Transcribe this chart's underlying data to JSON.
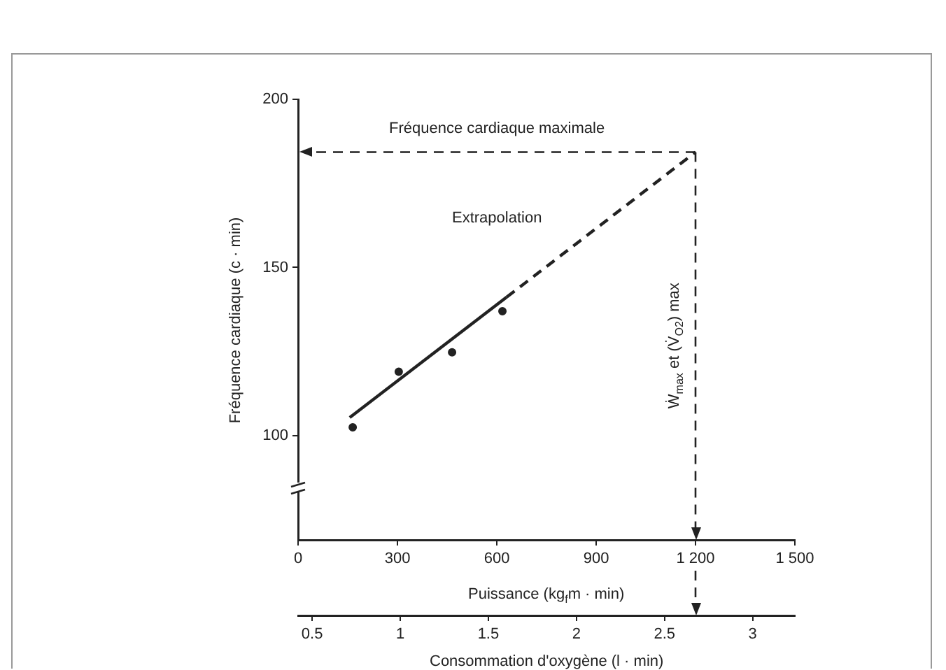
{
  "chart_data": {
    "type": "scatter",
    "xlabel": "Puissance (kg$_{f}$m · min)",
    "ylabel": "Fréquence cardiaque (c · min)",
    "x2label": "Consommation d'oxygène (l · min)",
    "xlim": [
      0,
      1500
    ],
    "xticks": [
      0,
      300,
      600,
      900,
      {
        "value": 1200,
        "label": "1 200"
      },
      {
        "value": 1500,
        "label": "1 500"
      }
    ],
    "ylim": [
      69,
      200
    ],
    "yticks": [
      100,
      150,
      200
    ],
    "x2lim": [
      0.42,
      3.24
    ],
    "x2ticks": [
      0.5,
      1,
      1.5,
      2,
      2.5,
      3
    ],
    "series": [
      {
        "color": "#222222",
        "marker": "circle",
        "x": [
          165,
          304,
          465,
          617
        ],
        "values": [
          102.5,
          119,
          124.8,
          137
        ]
      },
      {
        "type": "line",
        "color": "#222222",
        "marker": "none",
        "line_style": "solid",
        "x": [
          156,
          630
        ],
        "values": [
          105.4,
          141.2
        ]
      },
      {
        "type": "line",
        "color": "#222222",
        "marker": "none",
        "line_style": "dashed",
        "x": [
          630,
          1200
        ],
        "values": [
          141.2,
          184.3
        ]
      }
    ],
    "ref_lines": [
      {
        "axis": "y",
        "value": 184.3,
        "label": "Fréquence cardiaque maximale",
        "color": "#222222",
        "line_style": "dashed"
      },
      {
        "axis": "x",
        "value": 1200,
        "label": "Ẇ$_{max}$ et (V̇$_{O2}$) max",
        "color": "#222222",
        "line_style": "dashed"
      }
    ],
    "annotations": [
      "Extrapolation"
    ],
    "grid": false,
    "legend": false
  }
}
